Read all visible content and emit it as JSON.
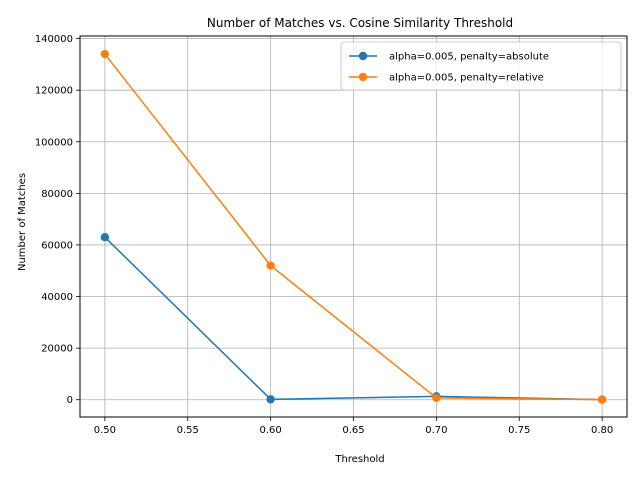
{
  "chart_data": {
    "type": "line",
    "title": "Number of Matches vs. Cosine Similarity Threshold",
    "xlabel": "Threshold",
    "ylabel": "Number of Matches",
    "x": [
      0.5,
      0.6,
      0.7,
      0.8
    ],
    "xticks": [
      "0.50",
      "0.55",
      "0.60",
      "0.65",
      "0.70",
      "0.75",
      "0.80"
    ],
    "yticks": [
      "0",
      "20000",
      "40000",
      "60000",
      "80000",
      "100000",
      "120000",
      "140000"
    ],
    "xlim": [
      0.485,
      0.815
    ],
    "ylim": [
      -6700,
      141000
    ],
    "grid": true,
    "legend_position": "top-right",
    "series": [
      {
        "name": "alpha=0.005, penalty=absolute",
        "color": "#1f77b4",
        "values": [
          63000,
          150,
          1300,
          50
        ]
      },
      {
        "name": "alpha=0.005, penalty=relative",
        "color": "#ff7f0e",
        "values": [
          134000,
          52000,
          700,
          40
        ]
      }
    ]
  }
}
